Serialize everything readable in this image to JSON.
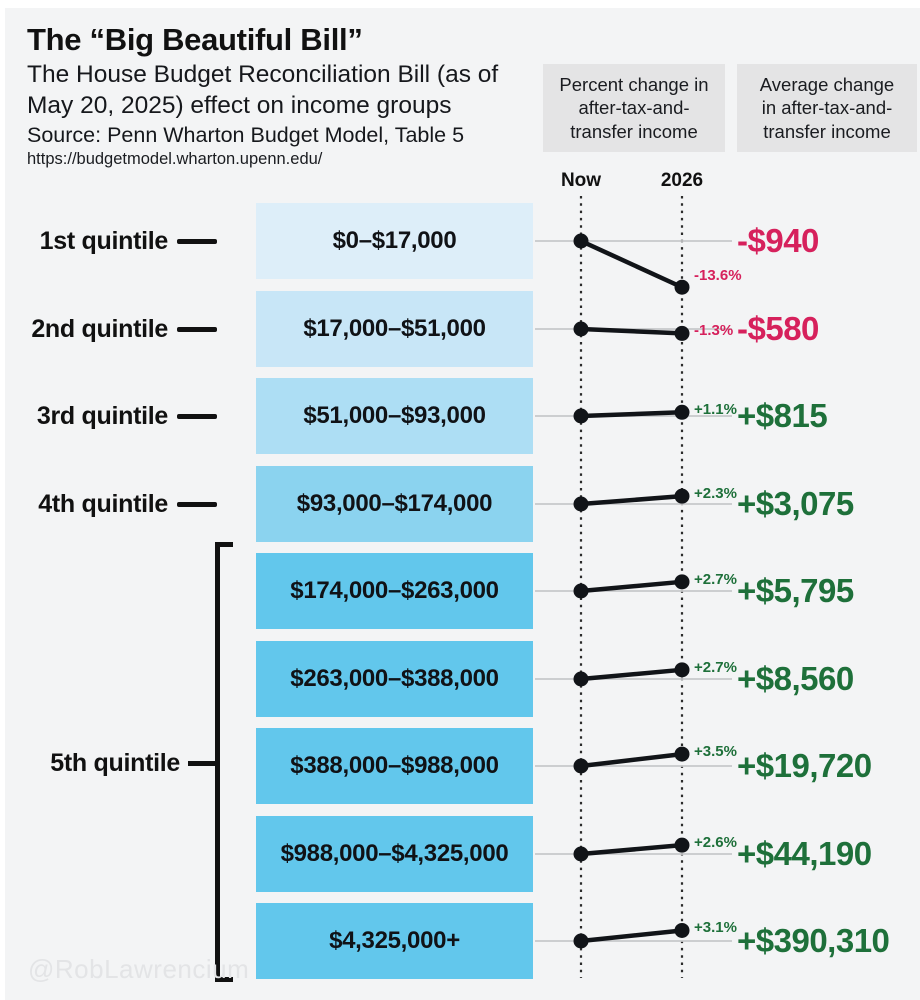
{
  "header": {
    "title": "The “Big Beautiful Bill”",
    "subtitle": "The House Budget Reconciliation Bill (as of\nMay 20, 2025) effect on income groups",
    "source": "Source: Penn Wharton Budget Model, Table 5",
    "url": "https://budgetmodel.wharton.upenn.edu/"
  },
  "column_headers": {
    "percent_change": "Percent change in\nafter-tax-and-\ntransfer income",
    "average_change": "Average change\nin after-tax-and-\ntransfer income",
    "now": "Now",
    "year": "2026"
  },
  "watermark": "@RobLawrencium",
  "colors": {
    "negative": "#d6215c",
    "positive": "#1e703a",
    "ink": "#111418",
    "baseline_gray": "#c7c8ca",
    "background": "#f3f4f5"
  },
  "chart_data": {
    "type": "slope",
    "x_labels": [
      "Now",
      "2026"
    ],
    "bracket_label": "5th quintile",
    "rows": [
      {
        "quintile": "1st quintile",
        "income_range": "$0–$17,000",
        "pct_change": -13.6,
        "pct_label": "-13.6%",
        "avg_change": "-$940",
        "box_color": "#ddeef9"
      },
      {
        "quintile": "2nd quintile",
        "income_range": "$17,000–$51,000",
        "pct_change": -1.3,
        "pct_label": "-1.3%",
        "avg_change": "-$580",
        "box_color": "#c8e6f7"
      },
      {
        "quintile": "3rd quintile",
        "income_range": "$51,000–$93,000",
        "pct_change": 1.1,
        "pct_label": "+1.1%",
        "avg_change": "+$815",
        "box_color": "#addef4"
      },
      {
        "quintile": "4th quintile",
        "income_range": "$93,000–$174,000",
        "pct_change": 2.3,
        "pct_label": "+2.3%",
        "avg_change": "+$3,075",
        "box_color": "#8bd3ef"
      },
      {
        "quintile": null,
        "income_range": "$174,000–$263,000",
        "pct_change": 2.7,
        "pct_label": "+2.7%",
        "avg_change": "+$5,795",
        "box_color": "#62c7ec"
      },
      {
        "quintile": null,
        "income_range": "$263,000–$388,000",
        "pct_change": 2.7,
        "pct_label": "+2.7%",
        "avg_change": "+$8,560",
        "box_color": "#62c7ec"
      },
      {
        "quintile": null,
        "income_range": "$388,000–$988,000",
        "pct_change": 3.5,
        "pct_label": "+3.5%",
        "avg_change": "+$19,720",
        "box_color": "#62c7ec"
      },
      {
        "quintile": null,
        "income_range": "$988,000–$4,325,000",
        "pct_change": 2.6,
        "pct_label": "+2.6%",
        "avg_change": "+$44,190",
        "box_color": "#62c7ec"
      },
      {
        "quintile": null,
        "income_range": "$4,325,000+",
        "pct_change": 3.1,
        "pct_label": "+3.1%",
        "avg_change": "+$390,310",
        "box_color": "#62c7ec"
      }
    ]
  }
}
